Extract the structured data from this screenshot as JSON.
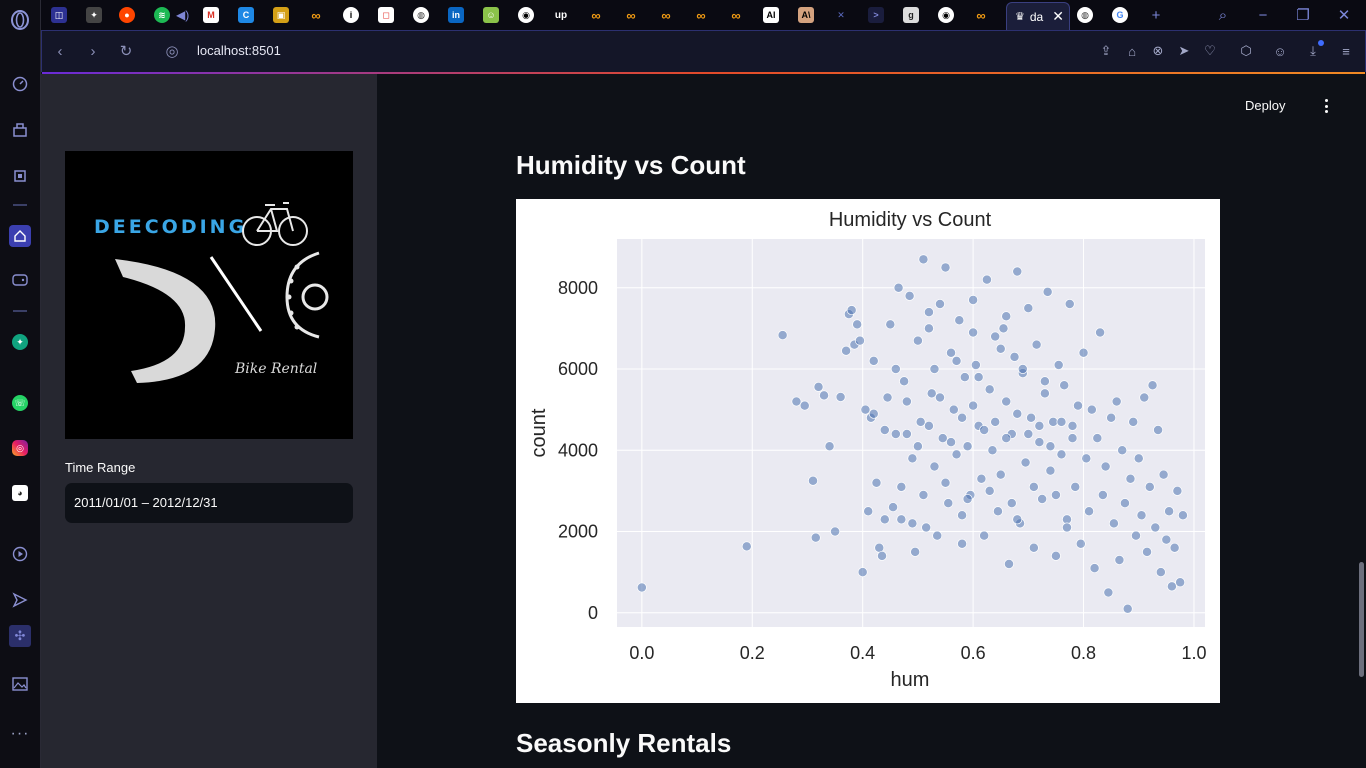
{
  "browser": {
    "url": "localhost:8501",
    "active_tab_title": "da"
  },
  "sidebar": {
    "logo": {
      "brand": "DEECODING",
      "tagline": "Bike Rental"
    },
    "time_range": {
      "label": "Time Range",
      "value": "2011/01/01 – 2012/12/31"
    }
  },
  "header": {
    "deploy_label": "Deploy"
  },
  "main": {
    "section_title": "Humidity vs Count",
    "next_section_title": "Seasonly Rentals"
  },
  "chart_data": {
    "type": "scatter",
    "title": "Humidity vs Count",
    "xlabel": "hum",
    "ylabel": "count",
    "xlim": [
      -0.045,
      1.02
    ],
    "ylim": [
      -350,
      9200
    ],
    "xticks": [
      0.0,
      0.2,
      0.4,
      0.6,
      0.8,
      1.0
    ],
    "xtick_labels": [
      "0.0",
      "0.2",
      "0.4",
      "0.6",
      "0.8",
      "1.0"
    ],
    "yticks": [
      0,
      2000,
      4000,
      6000,
      8000
    ],
    "ytick_labels": [
      "0",
      "2000",
      "4000",
      "6000",
      "8000"
    ],
    "grid": true,
    "point_color": "#4c72b0",
    "background_color": "#eaeaf2",
    "points": [
      [
        0.0,
        623
      ],
      [
        0.19,
        1635
      ],
      [
        0.255,
        6835
      ],
      [
        0.28,
        5200
      ],
      [
        0.295,
        5100
      ],
      [
        0.31,
        3250
      ],
      [
        0.315,
        1850
      ],
      [
        0.32,
        5560
      ],
      [
        0.33,
        5350
      ],
      [
        0.34,
        4100
      ],
      [
        0.35,
        2000
      ],
      [
        0.36,
        5310
      ],
      [
        0.37,
        6450
      ],
      [
        0.375,
        7350
      ],
      [
        0.38,
        7450
      ],
      [
        0.385,
        6600
      ],
      [
        0.39,
        7100
      ],
      [
        0.395,
        6700
      ],
      [
        0.4,
        1000
      ],
      [
        0.405,
        5000
      ],
      [
        0.41,
        2500
      ],
      [
        0.415,
        4800
      ],
      [
        0.42,
        6200
      ],
      [
        0.425,
        3200
      ],
      [
        0.43,
        1600
      ],
      [
        0.435,
        1400
      ],
      [
        0.44,
        4500
      ],
      [
        0.445,
        5300
      ],
      [
        0.45,
        7100
      ],
      [
        0.455,
        2600
      ],
      [
        0.46,
        6000
      ],
      [
        0.465,
        8000
      ],
      [
        0.47,
        2300
      ],
      [
        0.475,
        5700
      ],
      [
        0.48,
        4400
      ],
      [
        0.485,
        7800
      ],
      [
        0.49,
        3800
      ],
      [
        0.495,
        1500
      ],
      [
        0.5,
        6700
      ],
      [
        0.505,
        4700
      ],
      [
        0.51,
        8700
      ],
      [
        0.515,
        2100
      ],
      [
        0.52,
        7400
      ],
      [
        0.525,
        5400
      ],
      [
        0.53,
        3600
      ],
      [
        0.535,
        1900
      ],
      [
        0.54,
        7600
      ],
      [
        0.545,
        4300
      ],
      [
        0.55,
        8500
      ],
      [
        0.555,
        2700
      ],
      [
        0.56,
        6400
      ],
      [
        0.565,
        5000
      ],
      [
        0.57,
        3900
      ],
      [
        0.575,
        7200
      ],
      [
        0.58,
        1700
      ],
      [
        0.585,
        5800
      ],
      [
        0.59,
        4100
      ],
      [
        0.595,
        2900
      ],
      [
        0.6,
        7700
      ],
      [
        0.605,
        6100
      ],
      [
        0.61,
        4600
      ],
      [
        0.615,
        3300
      ],
      [
        0.62,
        1900
      ],
      [
        0.625,
        8200
      ],
      [
        0.63,
        5500
      ],
      [
        0.635,
        4000
      ],
      [
        0.64,
        6800
      ],
      [
        0.645,
        2500
      ],
      [
        0.65,
        3400
      ],
      [
        0.655,
        7000
      ],
      [
        0.66,
        5200
      ],
      [
        0.665,
        1200
      ],
      [
        0.67,
        4400
      ],
      [
        0.675,
        6300
      ],
      [
        0.68,
        8400
      ],
      [
        0.685,
        2200
      ],
      [
        0.69,
        5900
      ],
      [
        0.695,
        3700
      ],
      [
        0.7,
        7500
      ],
      [
        0.705,
        4800
      ],
      [
        0.71,
        1600
      ],
      [
        0.715,
        6600
      ],
      [
        0.72,
        4200
      ],
      [
        0.725,
        2800
      ],
      [
        0.73,
        5400
      ],
      [
        0.735,
        7900
      ],
      [
        0.74,
        3500
      ],
      [
        0.745,
        4700
      ],
      [
        0.75,
        1400
      ],
      [
        0.755,
        6100
      ],
      [
        0.76,
        3900
      ],
      [
        0.765,
        5600
      ],
      [
        0.77,
        2300
      ],
      [
        0.775,
        7600
      ],
      [
        0.78,
        4600
      ],
      [
        0.785,
        3100
      ],
      [
        0.79,
        5100
      ],
      [
        0.795,
        1700
      ],
      [
        0.8,
        6400
      ],
      [
        0.805,
        3800
      ],
      [
        0.81,
        2500
      ],
      [
        0.815,
        5000
      ],
      [
        0.82,
        1100
      ],
      [
        0.825,
        4300
      ],
      [
        0.83,
        6900
      ],
      [
        0.835,
        2900
      ],
      [
        0.84,
        3600
      ],
      [
        0.845,
        500
      ],
      [
        0.85,
        4800
      ],
      [
        0.855,
        2200
      ],
      [
        0.86,
        5200
      ],
      [
        0.865,
        1300
      ],
      [
        0.87,
        4000
      ],
      [
        0.875,
        2700
      ],
      [
        0.88,
        100
      ],
      [
        0.885,
        3300
      ],
      [
        0.89,
        4700
      ],
      [
        0.895,
        1900
      ],
      [
        0.9,
        3800
      ],
      [
        0.905,
        2400
      ],
      [
        0.91,
        5300
      ],
      [
        0.915,
        1500
      ],
      [
        0.92,
        3100
      ],
      [
        0.925,
        5600
      ],
      [
        0.93,
        2100
      ],
      [
        0.935,
        4500
      ],
      [
        0.94,
        1000
      ],
      [
        0.945,
        3400
      ],
      [
        0.95,
        1800
      ],
      [
        0.955,
        2500
      ],
      [
        0.96,
        650
      ],
      [
        0.965,
        1600
      ],
      [
        0.97,
        3000
      ],
      [
        0.975,
        750
      ],
      [
        0.98,
        2400
      ],
      [
        0.42,
        4900
      ],
      [
        0.46,
        4400
      ],
      [
        0.48,
        5200
      ],
      [
        0.5,
        4100
      ],
      [
        0.52,
        4600
      ],
      [
        0.54,
        5300
      ],
      [
        0.56,
        4200
      ],
      [
        0.58,
        4800
      ],
      [
        0.6,
        5100
      ],
      [
        0.62,
        4500
      ],
      [
        0.64,
        4700
      ],
      [
        0.66,
        4300
      ],
      [
        0.68,
        4900
      ],
      [
        0.7,
        4400
      ],
      [
        0.72,
        4600
      ],
      [
        0.74,
        4100
      ],
      [
        0.76,
        4700
      ],
      [
        0.78,
        4300
      ],
      [
        0.53,
        6000
      ],
      [
        0.57,
        6200
      ],
      [
        0.61,
        5800
      ],
      [
        0.65,
        6500
      ],
      [
        0.69,
        6000
      ],
      [
        0.73,
        5700
      ],
      [
        0.47,
        3100
      ],
      [
        0.51,
        2900
      ],
      [
        0.55,
        3200
      ],
      [
        0.59,
        2800
      ],
      [
        0.63,
        3000
      ],
      [
        0.67,
        2700
      ],
      [
        0.71,
        3100
      ],
      [
        0.75,
        2900
      ],
      [
        0.44,
        2300
      ],
      [
        0.49,
        2200
      ],
      [
        0.58,
        2400
      ],
      [
        0.68,
        2300
      ],
      [
        0.77,
        2100
      ],
      [
        0.52,
        7000
      ],
      [
        0.6,
        6900
      ],
      [
        0.66,
        7300
      ]
    ]
  }
}
